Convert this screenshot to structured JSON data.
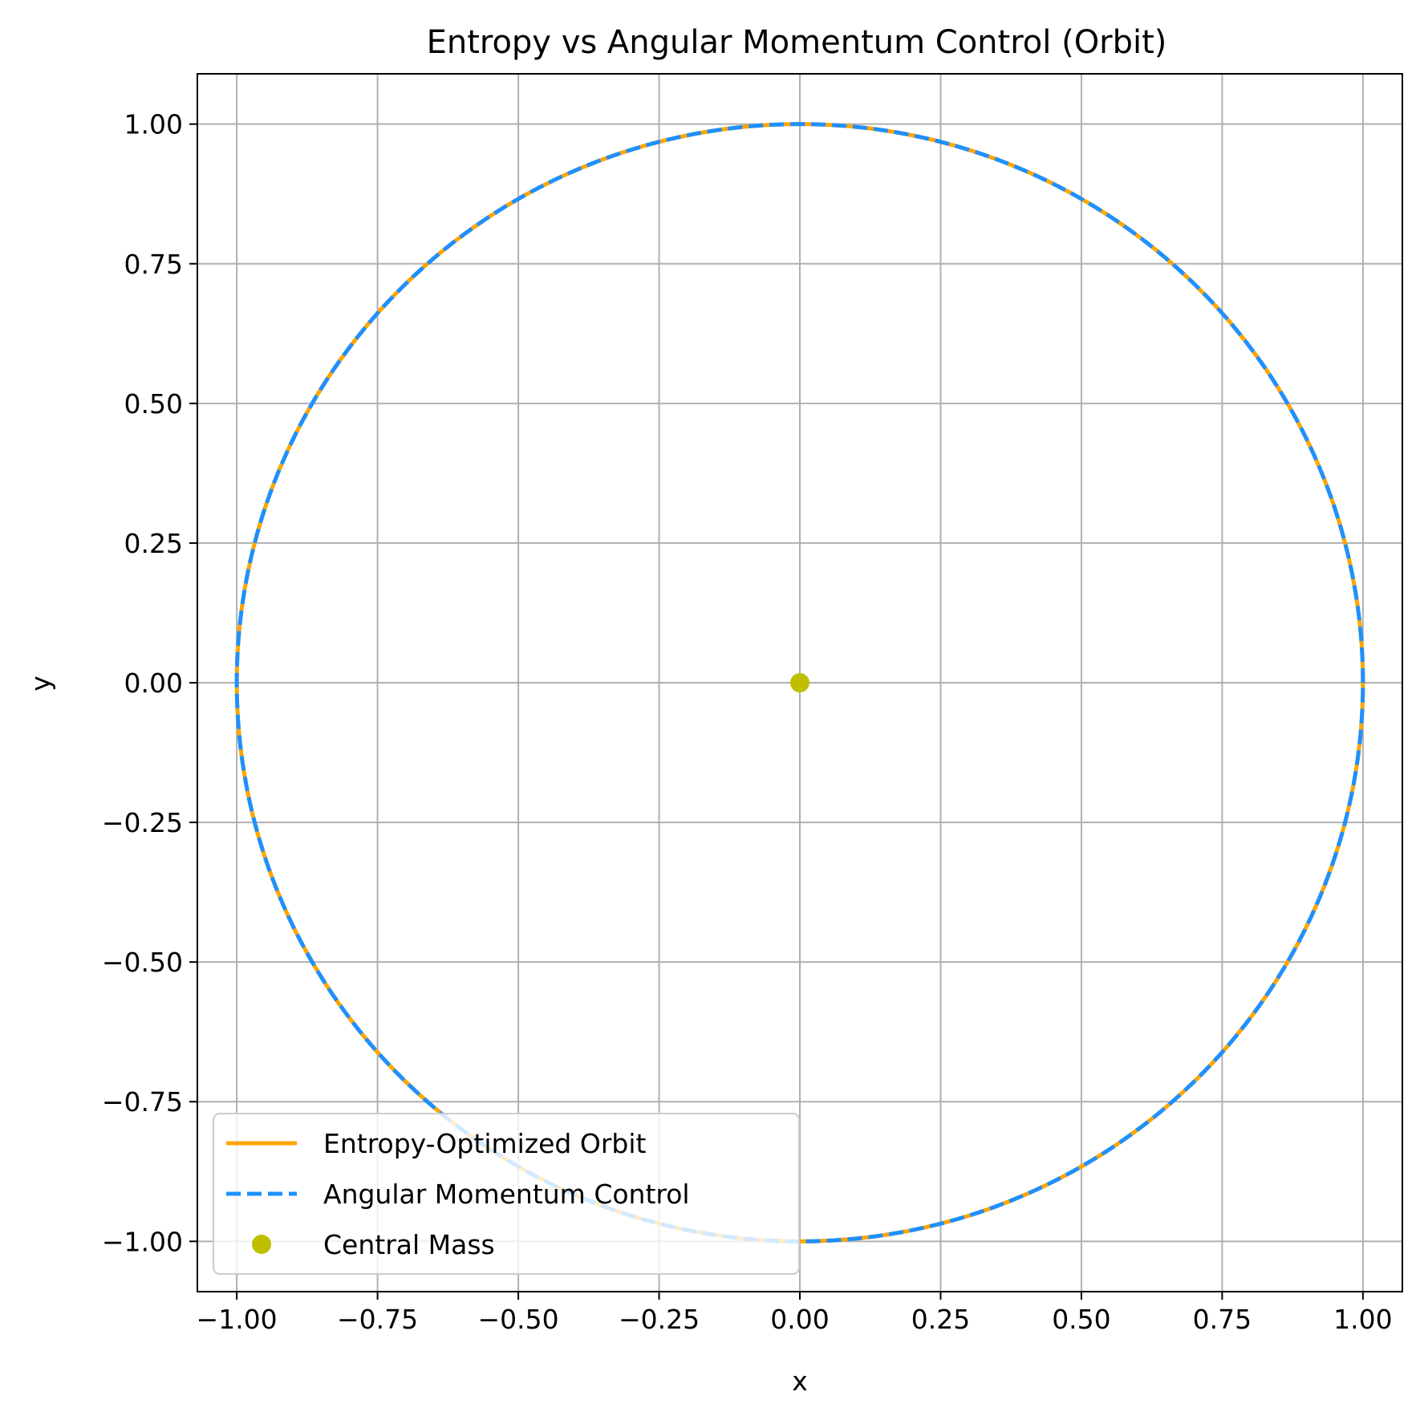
{
  "chart_data": {
    "type": "line",
    "title": "Entropy vs Angular Momentum Control (Orbit)",
    "xlabel": "x",
    "ylabel": "y",
    "xlim": [
      -1.07,
      1.07
    ],
    "ylim": [
      -1.09,
      1.09
    ],
    "xticks": [
      -1.0,
      -0.75,
      -0.5,
      -0.25,
      0.0,
      0.25,
      0.5,
      0.75,
      1.0
    ],
    "yticks": [
      -1.0,
      -0.75,
      -0.5,
      -0.25,
      0.0,
      0.25,
      0.5,
      0.75,
      1.0
    ],
    "xtick_labels": [
      "−1.00",
      "−0.75",
      "−0.50",
      "−0.25",
      "0.00",
      "0.25",
      "0.50",
      "0.75",
      "1.00"
    ],
    "ytick_labels": [
      "−1.00",
      "−0.75",
      "−0.50",
      "−0.25",
      "0.00",
      "0.25",
      "0.50",
      "0.75",
      "1.00"
    ],
    "grid": true,
    "legend_position": "lower-left",
    "series": [
      {
        "name": "Entropy-Optimized Orbit",
        "kind": "line",
        "style": "solid",
        "color": "#ffa500",
        "shape": "circle",
        "center": [
          0.0,
          0.0
        ],
        "radius": 1.0
      },
      {
        "name": "Angular Momentum Control",
        "kind": "line",
        "style": "dashed",
        "color": "#1e90ff",
        "shape": "circle",
        "center": [
          0.0,
          0.0
        ],
        "radius": 1.0
      },
      {
        "name": "Central Mass",
        "kind": "marker",
        "color": "#bfbf00",
        "x": [
          0.0
        ],
        "y": [
          0.0
        ]
      }
    ]
  }
}
